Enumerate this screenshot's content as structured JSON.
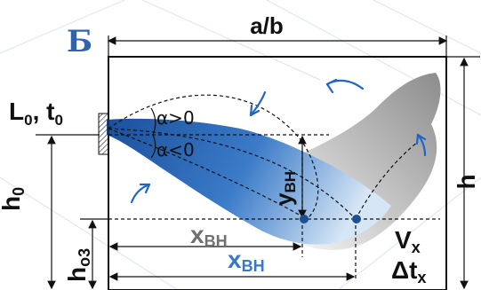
{
  "diagram": {
    "panel_letter": "Б",
    "width_label": "a/b",
    "height_label": "h",
    "source_label": {
      "L": "L",
      "L_sub": "0",
      "sep": ", ",
      "t": "t",
      "t_sub": "0"
    },
    "h0": {
      "main": "h",
      "sub": "0"
    },
    "ho3": {
      "main": "h",
      "sub": "o3"
    },
    "angle_up": "α>0",
    "angle_down": "α<0",
    "y_label": "y",
    "y_sub": "BH",
    "x_dark": {
      "main": "x",
      "sub": "BH"
    },
    "x_blue": {
      "main": "x",
      "sub": "BH"
    },
    "vx": {
      "main": "V",
      "sub": "x"
    },
    "dtx": {
      "main": "Δt",
      "sub": "x"
    },
    "colors": {
      "jet_blue": "#2d6ab8",
      "panel_letter": "#2f63b0",
      "x_dark_label": "#707070",
      "x_blue_label": "#3a78c4",
      "arrow_blue": "#1f66c4",
      "smoke_grey": "#9a9a9a",
      "dot": "#1e4f8f"
    }
  }
}
